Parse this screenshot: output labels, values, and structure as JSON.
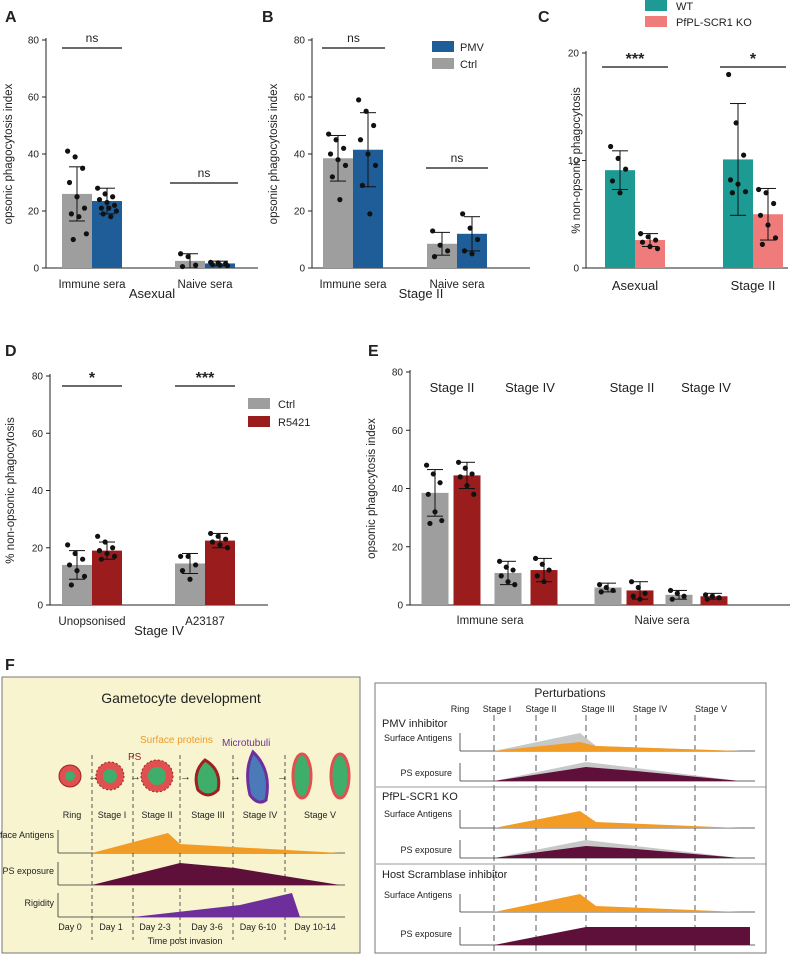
{
  "panel_letters": [
    "A",
    "B",
    "C",
    "D",
    "E",
    "F"
  ],
  "colors": {
    "grey": "#9e9e9e",
    "blue": "#1f5d99",
    "teal": "#1d9a93",
    "salmon": "#f07b7b",
    "darkred": "#9b1c1c",
    "orange": "#f29b25",
    "maroon": "#5e0f3a",
    "purple": "#6e2f9c",
    "light_grey_area": "#c8c8c8",
    "yellow_bg": "#f7f4cf"
  },
  "chart_data": [
    {
      "panel": "A",
      "type": "bar",
      "ylabel": "opsonic phagocytosis index",
      "xlabel": "Asexual",
      "ylim": [
        0,
        80
      ],
      "yticks": [
        "0",
        "20",
        "40",
        "60",
        "80"
      ],
      "categories": [
        "Immune sera",
        "Naive sera"
      ],
      "series": [
        {
          "name": "Ctrl",
          "color_key": "grey",
          "values": [
            26,
            2.5
          ],
          "sd": [
            9.5,
            2.5
          ]
        },
        {
          "name": "PMV",
          "color_key": "blue",
          "values": [
            23.5,
            1.6
          ],
          "sd": [
            4.5,
            0.8
          ]
        }
      ],
      "points": [
        [
          [
            41,
            39,
            35,
            30,
            25,
            21,
            19,
            18,
            12,
            10
          ],
          [
            28,
            26,
            25,
            24,
            23,
            22,
            21,
            21,
            20,
            19,
            18
          ]
        ],
        [
          [
            5,
            4,
            1,
            0.5
          ],
          [
            2,
            1.8,
            1.5,
            1.2,
            1,
            0.8
          ]
        ]
      ],
      "significance": [
        "ns",
        "ns"
      ]
    },
    {
      "panel": "B",
      "type": "bar",
      "ylabel": "opsonic phagocytosis index",
      "xlabel": "Stage II",
      "ylim": [
        0,
        80
      ],
      "yticks": [
        "0",
        "20",
        "40",
        "60",
        "80"
      ],
      "categories": [
        "Immune sera",
        "Naive sera"
      ],
      "series": [
        {
          "name": "Ctrl",
          "color_key": "grey",
          "values": [
            38.5,
            8.5
          ],
          "sd": [
            8,
            4
          ]
        },
        {
          "name": "PMV",
          "color_key": "blue",
          "values": [
            41.5,
            12
          ],
          "sd": [
            13,
            6
          ]
        }
      ],
      "points": [
        [
          [
            47,
            45,
            42,
            40,
            38,
            36,
            32,
            24
          ],
          [
            59,
            55,
            50,
            45,
            40,
            36,
            29,
            19
          ]
        ],
        [
          [
            13,
            8,
            6,
            4
          ],
          [
            19,
            14,
            10,
            6,
            5
          ]
        ]
      ],
      "legend": [
        "PMV",
        "Ctrl"
      ],
      "significance": [
        "ns",
        "ns"
      ]
    },
    {
      "panel": "C",
      "type": "bar",
      "ylabel": "% non-opsonic phagocytosis",
      "xlabel": "",
      "ylim": [
        0,
        20
      ],
      "yticks": [
        "0",
        "10",
        "20"
      ],
      "categories": [
        "Asexual",
        "Stage II"
      ],
      "series": [
        {
          "name": "WT",
          "color_key": "teal",
          "values": [
            9.1,
            10.1
          ],
          "sd": [
            1.8,
            5.2
          ]
        },
        {
          "name": "PfPL-SCR1 KO",
          "color_key": "salmon",
          "values": [
            2.6,
            5
          ],
          "sd": [
            0.6,
            2.4
          ]
        }
      ],
      "points": [
        [
          [
            11.3,
            10.2,
            9.2,
            8.1,
            7
          ],
          [
            3.2,
            2.9,
            2.6,
            2.4,
            2,
            1.8
          ]
        ],
        [
          [
            18,
            13.5,
            10.5,
            8.2,
            7.8,
            7.1,
            7
          ],
          [
            7.3,
            7,
            6,
            4.9,
            4,
            2.8,
            2.2
          ]
        ]
      ],
      "legend": [
        "WT",
        "PfPL-SCR1 KO"
      ],
      "significance": [
        "***",
        "*"
      ]
    },
    {
      "panel": "D",
      "type": "bar",
      "ylabel": "% non-opsonic phagocytosis",
      "xlabel": "Stage IV",
      "ylim": [
        0,
        80
      ],
      "yticks": [
        "0",
        "20",
        "40",
        "60",
        "80"
      ],
      "categories": [
        "Unopsonised",
        "A23187"
      ],
      "series": [
        {
          "name": "Ctrl",
          "color_key": "grey",
          "values": [
            14,
            14.5
          ],
          "sd": [
            5,
            3.5
          ]
        },
        {
          "name": "R5421",
          "color_key": "darkred",
          "values": [
            19,
            22.5
          ],
          "sd": [
            3,
            2.5
          ]
        }
      ],
      "points": [
        [
          [
            21,
            18,
            16,
            14,
            12,
            10,
            7
          ],
          [
            24,
            22,
            20,
            19,
            18,
            17,
            16
          ]
        ],
        [
          [
            17,
            17,
            14,
            12,
            9
          ],
          [
            25,
            24,
            23,
            22,
            21,
            20
          ]
        ]
      ],
      "legend": [
        "Ctrl",
        "R5421"
      ],
      "significance": [
        "*",
        "***"
      ]
    },
    {
      "panel": "E",
      "type": "bar",
      "ylabel": "opsonic phagocytosis index",
      "xlabel": "",
      "ylim": [
        0,
        80
      ],
      "yticks": [
        "0",
        "20",
        "40",
        "60",
        "80"
      ],
      "group_labels": [
        "Immune sera",
        "Naive sera"
      ],
      "stage_labels": [
        "Stage II",
        "Stage  IV",
        "Stage II",
        "Stage IV"
      ],
      "bars": [
        {
          "color_key": "grey",
          "value": 38.5,
          "sd": 8,
          "pts": [
            48,
            45,
            42,
            38,
            32,
            29,
            28
          ]
        },
        {
          "color_key": "darkred",
          "value": 44.5,
          "sd": 4.5,
          "pts": [
            49,
            47,
            45,
            44,
            41,
            38
          ]
        },
        {
          "color_key": "grey",
          "value": 11,
          "sd": 4,
          "pts": [
            15,
            13,
            12,
            10,
            8,
            7
          ]
        },
        {
          "color_key": "darkred",
          "value": 12,
          "sd": 4,
          "pts": [
            16,
            14,
            12,
            10,
            8
          ]
        },
        {
          "color_key": "grey",
          "value": 6,
          "sd": 1.5,
          "pts": [
            7,
            6,
            5,
            4.5
          ]
        },
        {
          "color_key": "darkred",
          "value": 5,
          "sd": 3,
          "pts": [
            8,
            6,
            4,
            3,
            2
          ]
        },
        {
          "color_key": "grey",
          "value": 3.5,
          "sd": 1.5,
          "pts": [
            5,
            4,
            3,
            2
          ]
        },
        {
          "color_key": "darkred",
          "value": 3,
          "sd": 1,
          "pts": [
            3.5,
            3,
            2.5,
            2
          ]
        }
      ]
    }
  ],
  "panel_f": {
    "left_title": "Gametocyte development",
    "surface_proteins": "Surface proteins",
    "ps": "PS",
    "microtubuli": "Microtubuli",
    "stages": [
      "Ring",
      "Stage I",
      "Stage II",
      "Stage III",
      "Stage IV",
      "Stage V"
    ],
    "rows": [
      "Surface Antigens",
      "PS exposure",
      "Rigidity"
    ],
    "days": [
      "Day 0",
      "Day 1",
      "Day 2-3",
      "Day 3-6",
      "Day 6-10",
      "Day 10-14"
    ],
    "xaxis": "Time post invasion",
    "right_title": "Perturbations",
    "right_stages": [
      "Ring",
      "Stage I",
      "Stage II",
      "Stage III",
      "Stage IV",
      "Stage V"
    ],
    "sections": [
      "PMV inhibitor",
      "PfPL-SCR1 KO",
      "Host Scramblase inhibitor"
    ],
    "surface_label": "Surface Antigens",
    "ps_label": "PS exposure"
  }
}
